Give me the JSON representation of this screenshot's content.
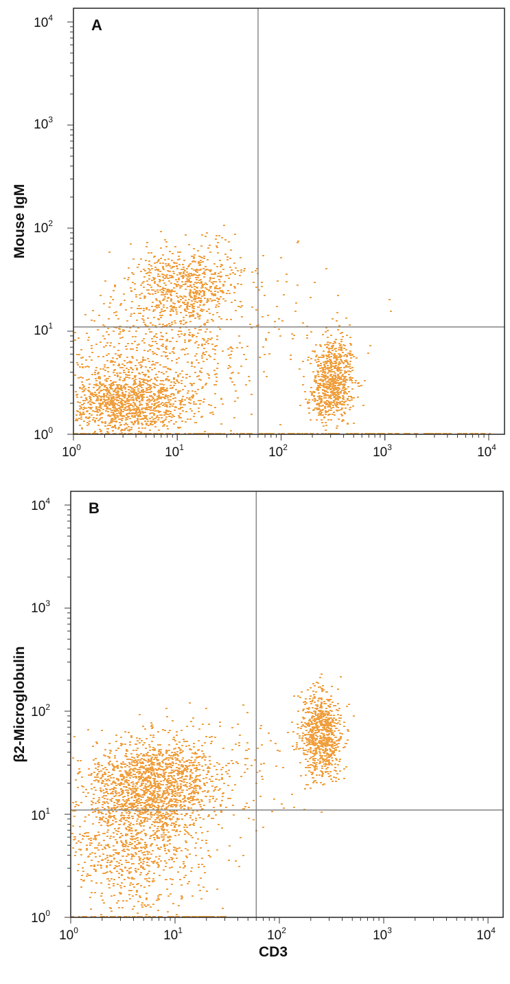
{
  "figure": {
    "xlabel": "CD3"
  },
  "chart_data": [
    {
      "type": "scatter",
      "panel": "A",
      "xlabel": "",
      "ylabel": "Mouse IgM",
      "xscale": "log",
      "yscale": "log",
      "xlim": [
        1,
        10000
      ],
      "ylim": [
        1,
        10000
      ],
      "x_ticks": [
        {
          "base": "10",
          "exp": "0"
        },
        {
          "base": "10",
          "exp": "1"
        },
        {
          "base": "10",
          "exp": "2"
        },
        {
          "base": "10",
          "exp": "3"
        },
        {
          "base": "10",
          "exp": "4"
        }
      ],
      "y_ticks": [
        {
          "base": "10",
          "exp": "0"
        },
        {
          "base": "10",
          "exp": "1"
        },
        {
          "base": "10",
          "exp": "2"
        },
        {
          "base": "10",
          "exp": "3"
        },
        {
          "base": "10",
          "exp": "4"
        }
      ],
      "quadrant_gate": {
        "x": 60,
        "y": 11
      },
      "grid": false,
      "color": "#f0a040",
      "populations": [
        {
          "center": [
            3,
            2
          ],
          "spread": [
            0.33,
            0.16
          ],
          "count": 1200
        },
        {
          "center": [
            12,
            28
          ],
          "spread": [
            0.27,
            0.2
          ],
          "count": 700
        },
        {
          "center": [
            6,
            6
          ],
          "spread": [
            0.45,
            0.3
          ],
          "count": 600
        },
        {
          "center": [
            320,
            3.5
          ],
          "spread": [
            0.1,
            0.2
          ],
          "count": 600
        },
        {
          "center": [
            260,
            2.4
          ],
          "spread": [
            0.09,
            0.12
          ],
          "count": 150
        },
        {
          "center": [
            150,
            15
          ],
          "spread": [
            0.35,
            0.35
          ],
          "count": 60
        }
      ],
      "axis_events": {
        "y": 1,
        "x_range": [
          1,
          10000
        ],
        "count": 220
      }
    },
    {
      "type": "scatter",
      "panel": "B",
      "xlabel": "CD3",
      "ylabel": "β2-Microglobulin",
      "xscale": "log",
      "yscale": "log",
      "xlim": [
        1,
        10000
      ],
      "ylim": [
        1,
        10000
      ],
      "x_ticks": [
        {
          "base": "10",
          "exp": "0"
        },
        {
          "base": "10",
          "exp": "1"
        },
        {
          "base": "10",
          "exp": "2"
        },
        {
          "base": "10",
          "exp": "3"
        },
        {
          "base": "10",
          "exp": "4"
        }
      ],
      "y_ticks": [
        {
          "base": "10",
          "exp": "0"
        },
        {
          "base": "10",
          "exp": "1"
        },
        {
          "base": "10",
          "exp": "2"
        },
        {
          "base": "10",
          "exp": "3"
        },
        {
          "base": "10",
          "exp": "4"
        }
      ],
      "quadrant_gate": {
        "x": 60,
        "y": 11
      },
      "grid": false,
      "color": "#f0a040",
      "populations": [
        {
          "center": [
            6,
            20
          ],
          "spread": [
            0.3,
            0.22
          ],
          "count": 1500
        },
        {
          "center": [
            4,
            5
          ],
          "spread": [
            0.35,
            0.35
          ],
          "count": 900
        },
        {
          "center": [
            250,
            60
          ],
          "spread": [
            0.1,
            0.2
          ],
          "count": 800
        },
        {
          "center": [
            30,
            30
          ],
          "spread": [
            0.35,
            0.3
          ],
          "count": 120
        }
      ],
      "axis_events": {
        "y": 1,
        "x_range": [
          1,
          30
        ],
        "count": 100
      }
    }
  ]
}
